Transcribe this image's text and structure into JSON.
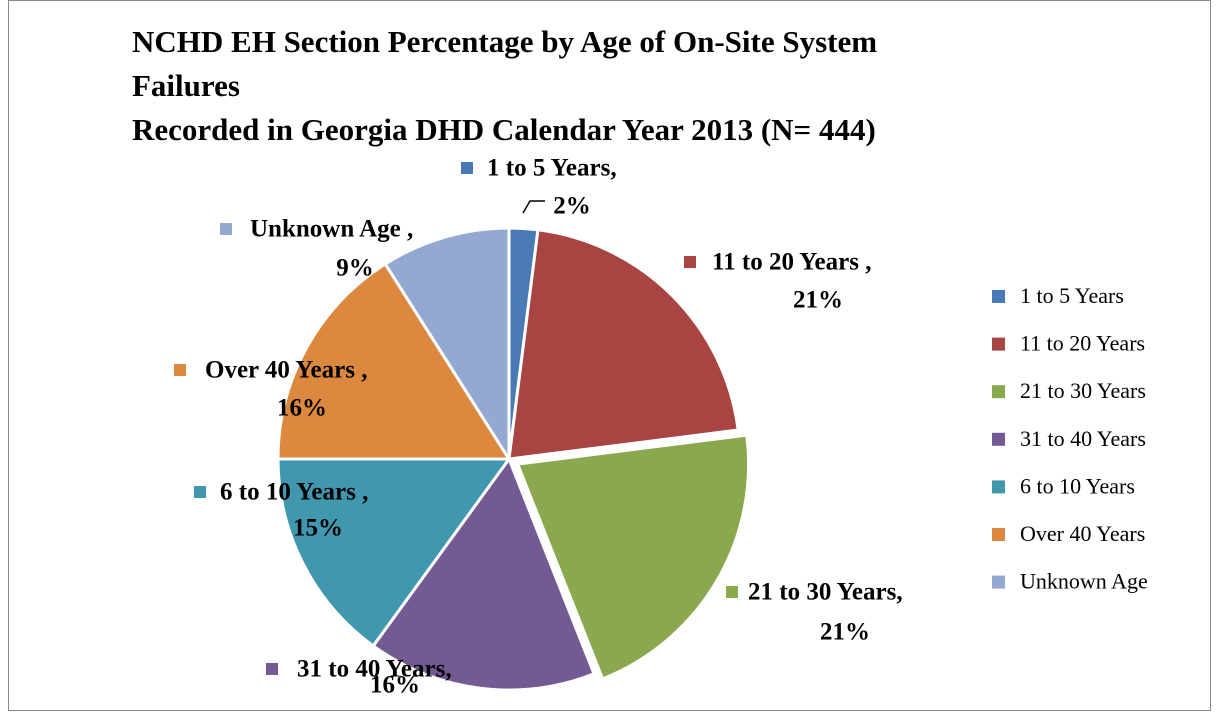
{
  "chart_data": {
    "type": "pie",
    "title": [
      "NCHD EH Section Percentage by Age of On-Site System",
      "Failures",
      "Recorded in Georgia DHD Calendar Year 2013 (N= 444)"
    ],
    "categories": [
      "1 to 5 Years",
      "11 to 20 Years",
      "21 to 30 Years",
      "31 to 40 Years",
      "6 to 10 Years",
      "Over 40 Years",
      "Unknown Age"
    ],
    "values": [
      2,
      21,
      21,
      16,
      15,
      16,
      9
    ],
    "value_labels": [
      "2%",
      "21%",
      "21%",
      "16%",
      "15%",
      "16%",
      "9%"
    ],
    "data_label_names": [
      "1 to 5 Years,",
      "11 to 20 Years ,",
      "21 to 30 Years,",
      "31 to 40 Years,",
      "6 to 10 Years ,",
      "Over 40 Years ,",
      "Unknown Age ,"
    ],
    "colors": [
      "#4a7ab5",
      "#a84543",
      "#8aa84d",
      "#735a93",
      "#4198ae",
      "#dd883f",
      "#94a9d2"
    ],
    "legend": "right"
  }
}
